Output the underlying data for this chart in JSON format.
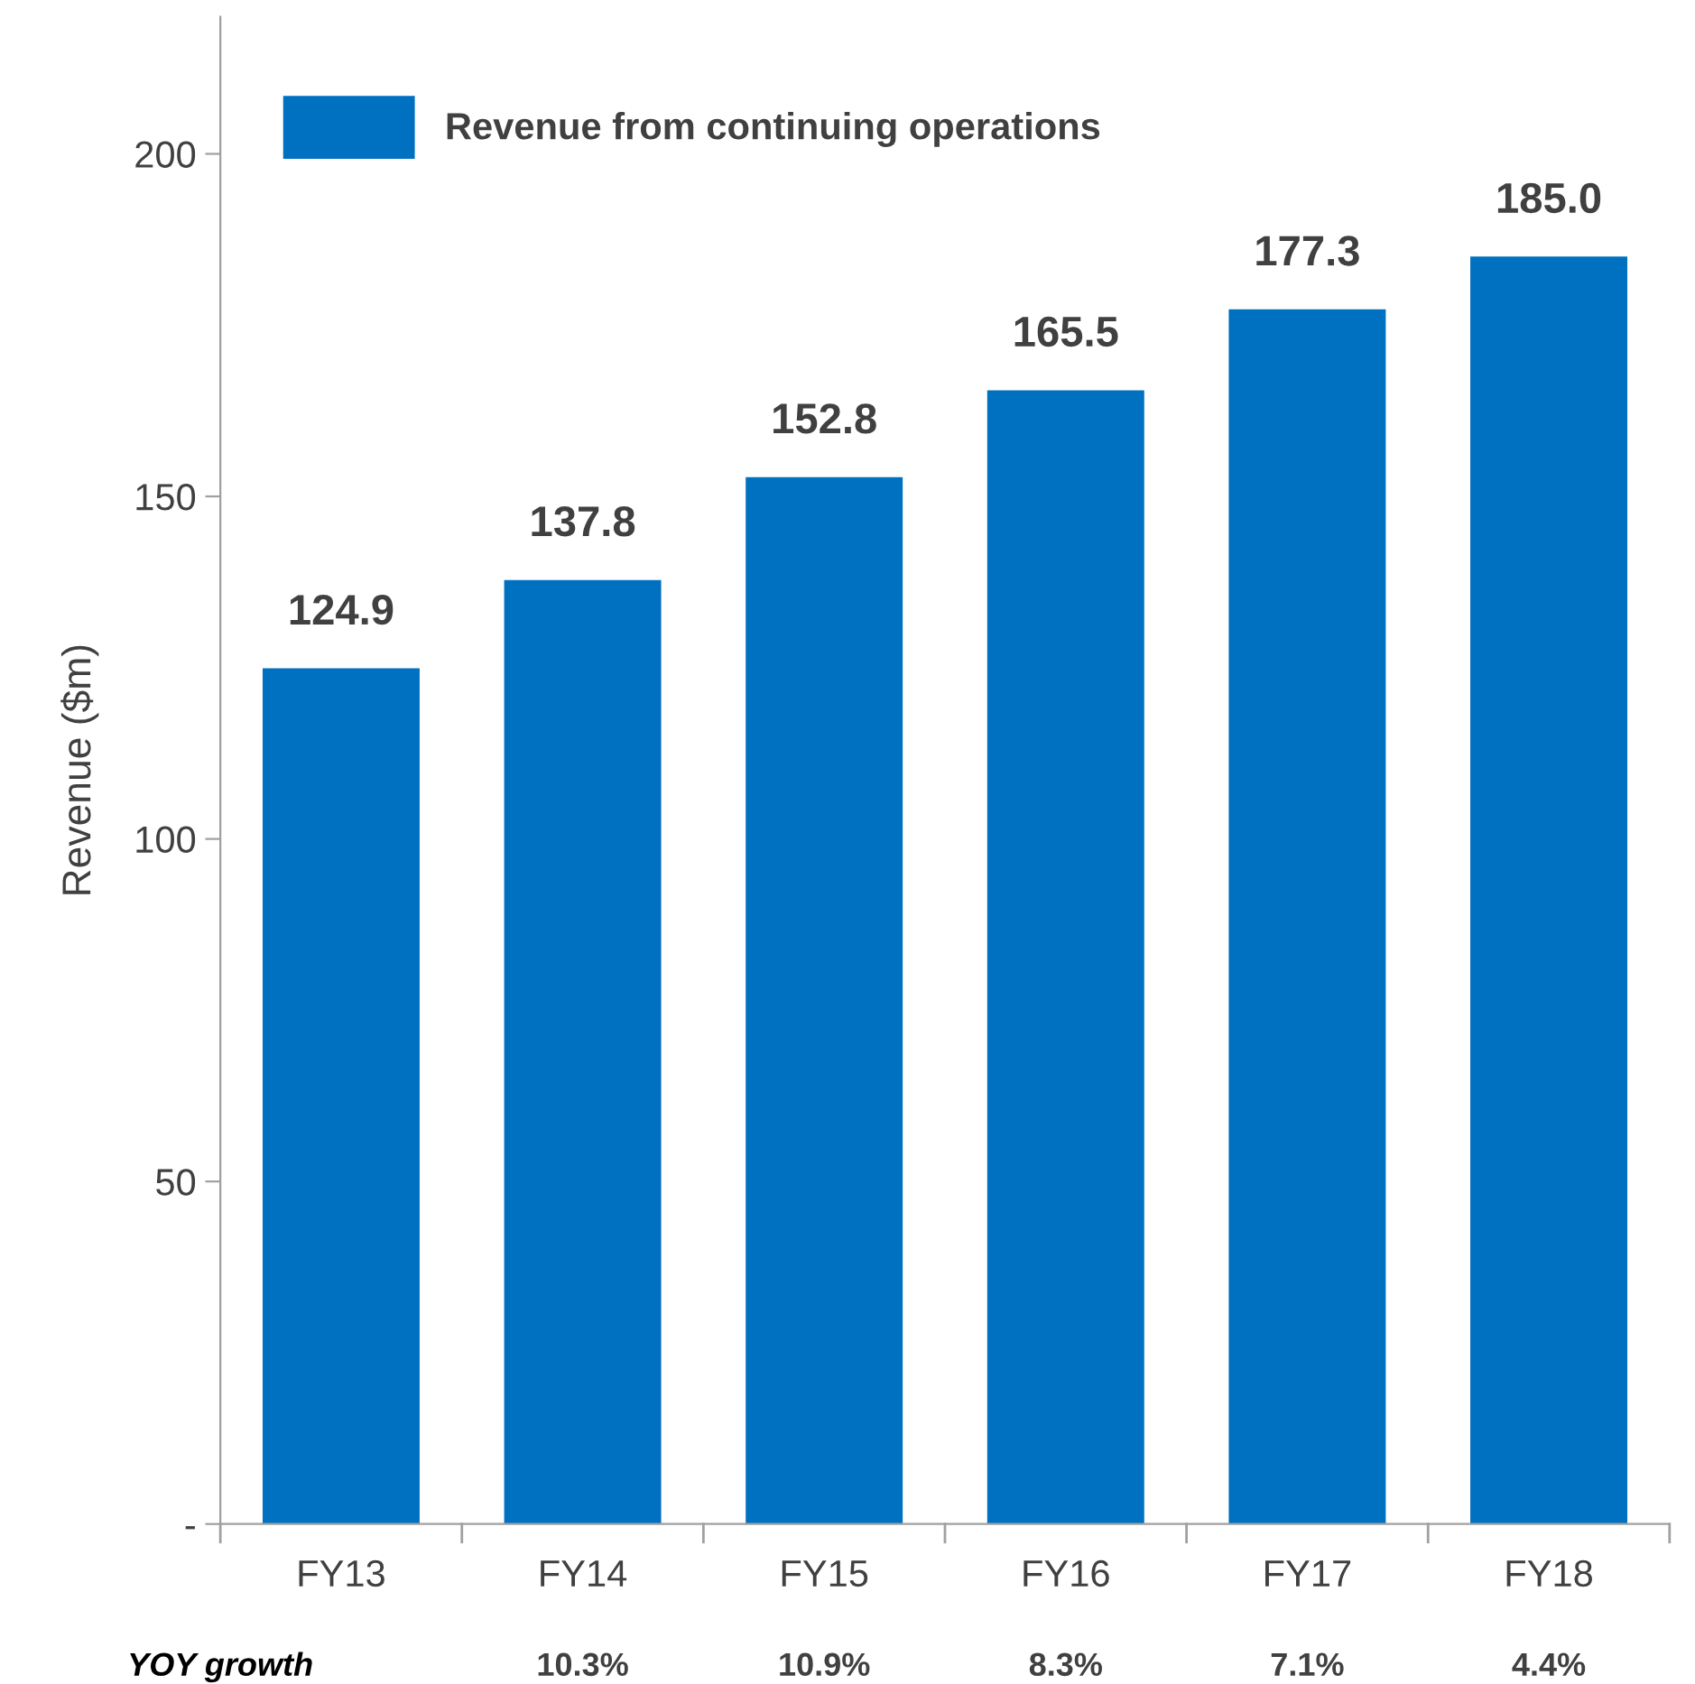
{
  "chart_data": {
    "type": "bar",
    "ylabel": "Revenue ($m)",
    "categories": [
      "FY13",
      "FY14",
      "FY15",
      "FY16",
      "FY17",
      "FY18"
    ],
    "series": [
      {
        "name": "Revenue from continuing operations",
        "color": "#0070c0",
        "values": [
          124.9,
          137.8,
          152.8,
          165.5,
          177.3,
          185.0
        ],
        "value_labels": [
          "124.9",
          "137.8",
          "152.8",
          "165.5",
          "177.3",
          "185.0"
        ]
      }
    ],
    "ylim": [
      0,
      220
    ],
    "yticks": [
      {
        "value": 0,
        "label": "-"
      },
      50,
      100,
      150,
      200
    ],
    "annotations": [
      "YOY growth",
      "10.3%",
      "10.9%",
      "8.3%",
      "7.1%",
      "4.4%"
    ],
    "grid": false,
    "legend": "top left"
  }
}
